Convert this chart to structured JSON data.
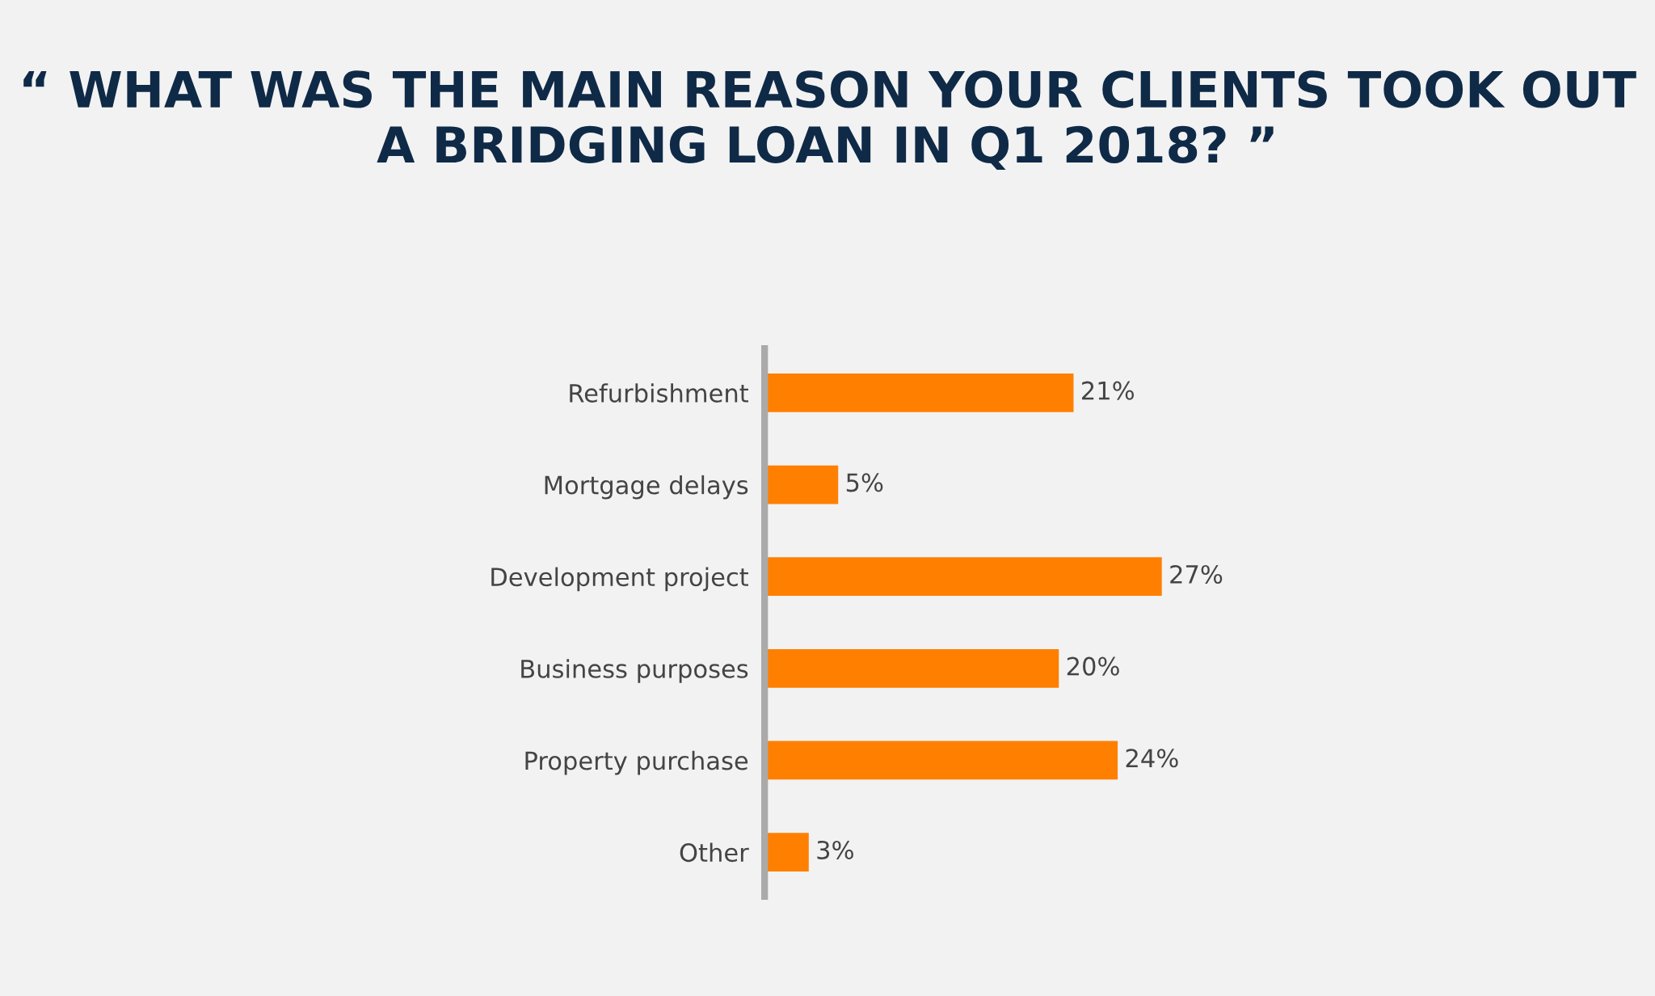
{
  "chart_data": {
    "type": "bar",
    "orientation": "horizontal",
    "title": "“ WHAT WAS THE MAIN REASON YOUR CLIENTS TOOK OUT A BRIDGING LOAN IN Q1 2018? ”",
    "categories": [
      "Refurbishment",
      "Mortgage delays",
      "Development project",
      "Business purposes",
      "Property purchase",
      "Other"
    ],
    "values": [
      21,
      5,
      27,
      20,
      24,
      3
    ],
    "value_labels": [
      "21%",
      "5%",
      "27%",
      "20%",
      "24%",
      "3%"
    ],
    "color": "#ff7f00",
    "grid": false,
    "legend": false,
    "tick_labels": "y"
  }
}
